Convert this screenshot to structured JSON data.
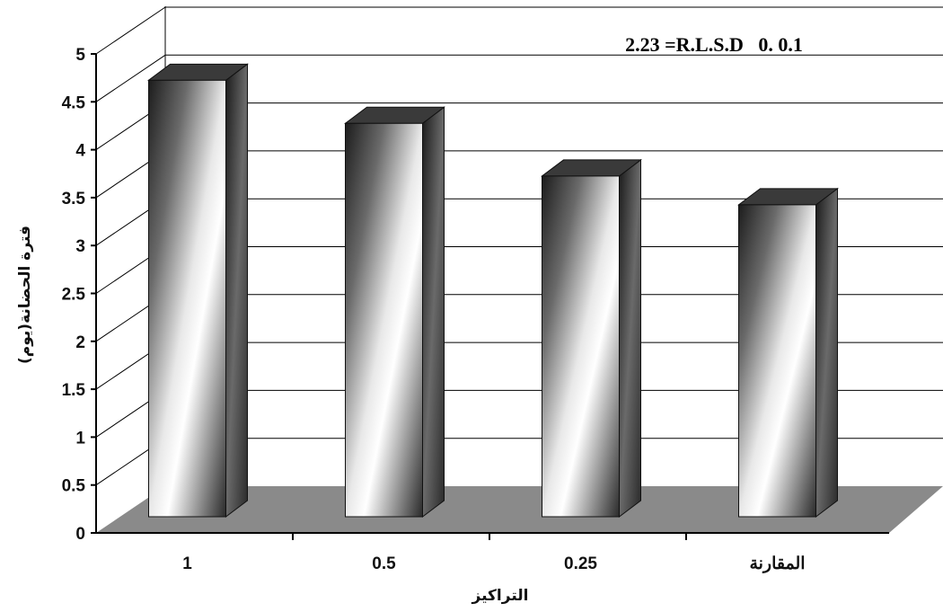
{
  "chart_data": {
    "type": "bar",
    "categories": [
      "1",
      "0.5",
      "0.25",
      "المقارنة"
    ],
    "values": [
      4.8,
      4.35,
      3.8,
      3.5
    ],
    "title": "",
    "xlabel": "التراكيز",
    "ylabel": "فترة الحضانة(يوم)",
    "ylim": [
      0,
      5
    ],
    "yticks": [
      "0",
      "0.5",
      "1",
      "1.5",
      "2",
      "2.5",
      "3",
      "3.5",
      "4",
      "4.5",
      "5"
    ],
    "annotation": "2.23 =R.L.S.D   0. 0.1",
    "grid": true,
    "style": "3d",
    "colors": {
      "floor": "#8a8a8a",
      "bar_top": "#3a3a3a",
      "bar_side": "#2a2a2a",
      "gridline": "#000000"
    }
  }
}
